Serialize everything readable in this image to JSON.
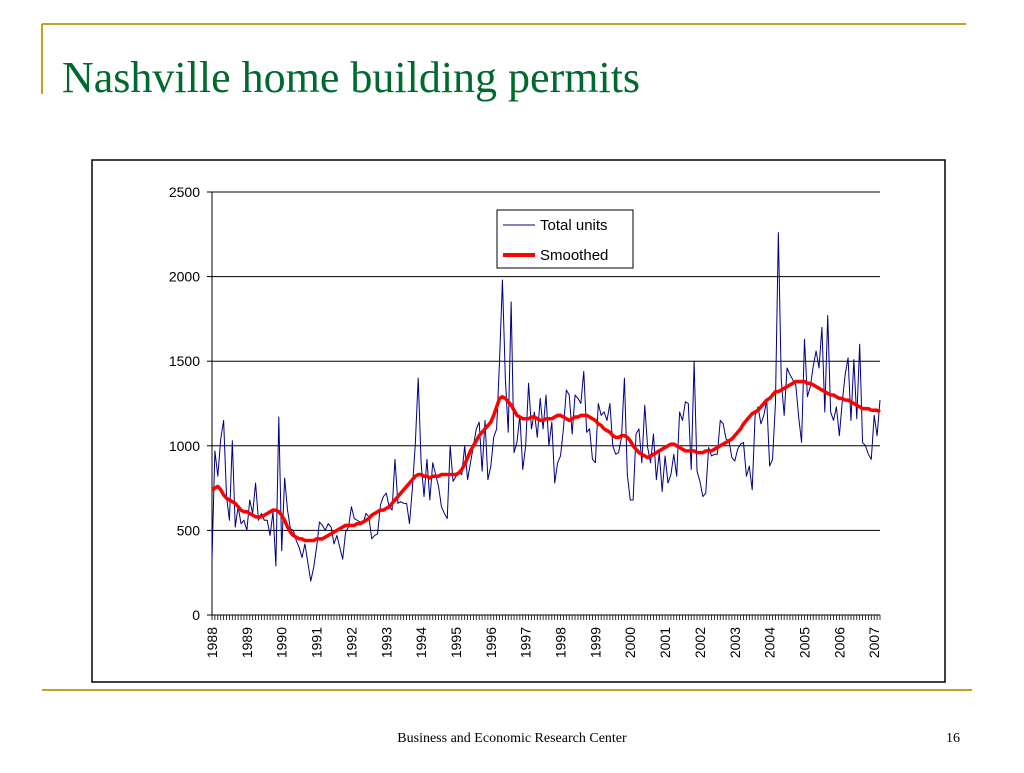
{
  "slide_title": "Nashville home building permits",
  "footer": "Business and Economic Research Center",
  "page_number": "16",
  "chart_data": {
    "type": "line",
    "categories": [
      "1988",
      null,
      null,
      null,
      null,
      null,
      null,
      null,
      null,
      null,
      null,
      null,
      "1989",
      null,
      null,
      null,
      null,
      null,
      null,
      null,
      null,
      null,
      null,
      null,
      "1990",
      null,
      null,
      null,
      null,
      null,
      null,
      null,
      null,
      null,
      null,
      null,
      "1991",
      null,
      null,
      null,
      null,
      null,
      null,
      null,
      null,
      null,
      null,
      null,
      "1992",
      null,
      null,
      null,
      null,
      null,
      null,
      null,
      null,
      null,
      null,
      null,
      "1993",
      null,
      null,
      null,
      null,
      null,
      null,
      null,
      null,
      null,
      null,
      null,
      "1994",
      null,
      null,
      null,
      null,
      null,
      null,
      null,
      null,
      null,
      null,
      null,
      "1995",
      null,
      null,
      null,
      null,
      null,
      null,
      null,
      null,
      null,
      null,
      null,
      "1996",
      null,
      null,
      null,
      null,
      null,
      null,
      null,
      null,
      null,
      null,
      null,
      "1997",
      null,
      null,
      null,
      null,
      null,
      null,
      null,
      null,
      null,
      null,
      null,
      "1998",
      null,
      null,
      null,
      null,
      null,
      null,
      null,
      null,
      null,
      null,
      null,
      "1999",
      null,
      null,
      null,
      null,
      null,
      null,
      null,
      null,
      null,
      null,
      null,
      "2000",
      null,
      null,
      null,
      null,
      null,
      null,
      null,
      null,
      null,
      null,
      null,
      "2001",
      null,
      null,
      null,
      null,
      null,
      null,
      null,
      null,
      null,
      null,
      null,
      "2002",
      null,
      null,
      null,
      null,
      null,
      null,
      null,
      null,
      null,
      null,
      null,
      "2003",
      null,
      null,
      null,
      null,
      null,
      null,
      null,
      null,
      null,
      null,
      null,
      "2004",
      null,
      null,
      null,
      null,
      null,
      null,
      null,
      null,
      null,
      null,
      null,
      "2005",
      null,
      null,
      null,
      null,
      null,
      null,
      null,
      null,
      null,
      null,
      null,
      "2006",
      null,
      null,
      null,
      null,
      null,
      null,
      null,
      null,
      null,
      null,
      null,
      "2007",
      null,
      null
    ],
    "series": [
      {
        "name": "Total units",
        "color": "#000080",
        "width": 1,
        "values": [
          330,
          970,
          820,
          1040,
          1150,
          700,
          560,
          1030,
          520,
          640,
          540,
          560,
          500,
          680,
          600,
          780,
          560,
          600,
          560,
          560,
          470,
          610,
          290,
          1170,
          380,
          810,
          620,
          510,
          500,
          440,
          400,
          340,
          420,
          310,
          200,
          280,
          400,
          550,
          530,
          500,
          540,
          520,
          420,
          470,
          400,
          330,
          490,
          520,
          640,
          570,
          560,
          550,
          540,
          600,
          580,
          450,
          470,
          480,
          650,
          700,
          720,
          640,
          620,
          920,
          660,
          670,
          660,
          660,
          540,
          750,
          1010,
          1400,
          900,
          700,
          920,
          680,
          900,
          830,
          760,
          640,
          600,
          570,
          1000,
          790,
          820,
          850,
          830,
          1000,
          800,
          900,
          1000,
          1100,
          1140,
          850,
          1150,
          800,
          880,
          1050,
          1100,
          1500,
          1980,
          1400,
          1080,
          1850,
          960,
          1020,
          1180,
          860,
          1000,
          1370,
          1100,
          1200,
          1050,
          1280,
          1100,
          1300,
          1000,
          1140,
          780,
          900,
          940,
          1100,
          1330,
          1300,
          1070,
          1300,
          1280,
          1250,
          1440,
          1080,
          1100,
          920,
          900,
          1250,
          1180,
          1200,
          1150,
          1250,
          1000,
          950,
          960,
          1050,
          1400,
          830,
          680,
          680,
          1070,
          1100,
          900,
          1240,
          990,
          900,
          1070,
          800,
          960,
          730,
          940,
          780,
          830,
          950,
          820,
          1200,
          1150,
          1260,
          1250,
          860,
          1500,
          850,
          790,
          700,
          720,
          990,
          940,
          950,
          950,
          1150,
          1130,
          1040,
          1030,
          930,
          910,
          980,
          1010,
          1020,
          820,
          880,
          740,
          1180,
          1230,
          1130,
          1180,
          1270,
          880,
          920,
          1250,
          2260,
          1390,
          1180,
          1460,
          1420,
          1390,
          1360,
          1170,
          1020,
          1630,
          1290,
          1350,
          1470,
          1560,
          1460,
          1700,
          1200,
          1770,
          1200,
          1150,
          1230,
          1060,
          1260,
          1420,
          1520,
          1150,
          1510,
          1160,
          1600,
          1020,
          1000,
          950,
          920,
          1180,
          1060,
          1270
        ]
      },
      {
        "name": "Smoothed",
        "color": "#ff0000",
        "width": 3.5,
        "values": [
          740,
          750,
          760,
          740,
          710,
          690,
          680,
          670,
          660,
          640,
          620,
          610,
          610,
          600,
          590,
          580,
          580,
          580,
          590,
          600,
          610,
          620,
          620,
          610,
          590,
          560,
          520,
          490,
          470,
          460,
          450,
          450,
          440,
          440,
          440,
          440,
          450,
          450,
          450,
          460,
          470,
          480,
          490,
          500,
          510,
          520,
          530,
          530,
          530,
          530,
          540,
          540,
          550,
          560,
          570,
          590,
          600,
          610,
          620,
          620,
          630,
          640,
          660,
          680,
          700,
          720,
          740,
          760,
          780,
          800,
          820,
          830,
          830,
          820,
          820,
          810,
          820,
          820,
          820,
          830,
          830,
          830,
          830,
          830,
          830,
          840,
          860,
          890,
          930,
          970,
          1000,
          1030,
          1060,
          1080,
          1100,
          1120,
          1140,
          1180,
          1230,
          1280,
          1290,
          1280,
          1260,
          1240,
          1210,
          1180,
          1170,
          1160,
          1160,
          1160,
          1170,
          1170,
          1160,
          1150,
          1150,
          1160,
          1160,
          1160,
          1170,
          1180,
          1180,
          1170,
          1160,
          1150,
          1160,
          1170,
          1170,
          1180,
          1180,
          1180,
          1170,
          1160,
          1150,
          1130,
          1120,
          1100,
          1090,
          1080,
          1060,
          1050,
          1050,
          1060,
          1060,
          1050,
          1030,
          1000,
          980,
          960,
          950,
          940,
          930,
          940,
          950,
          960,
          970,
          980,
          990,
          1000,
          1010,
          1010,
          1000,
          990,
          980,
          970,
          970,
          970,
          970,
          960,
          960,
          960,
          970,
          970,
          970,
          980,
          990,
          1000,
          1010,
          1020,
          1030,
          1040,
          1060,
          1080,
          1100,
          1130,
          1150,
          1170,
          1190,
          1200,
          1210,
          1230,
          1250,
          1270,
          1280,
          1300,
          1320,
          1320,
          1330,
          1340,
          1350,
          1360,
          1370,
          1380,
          1380,
          1380,
          1380,
          1370,
          1370,
          1360,
          1350,
          1340,
          1330,
          1320,
          1310,
          1300,
          1300,
          1290,
          1280,
          1280,
          1270,
          1270,
          1260,
          1250,
          1240,
          1230,
          1220,
          1220,
          1220,
          1210,
          1210,
          1210,
          1200
        ]
      }
    ],
    "ylim": [
      0,
      2500
    ],
    "yticks": [
      0,
      500,
      1000,
      1500,
      2000,
      2500
    ],
    "grid": true
  }
}
